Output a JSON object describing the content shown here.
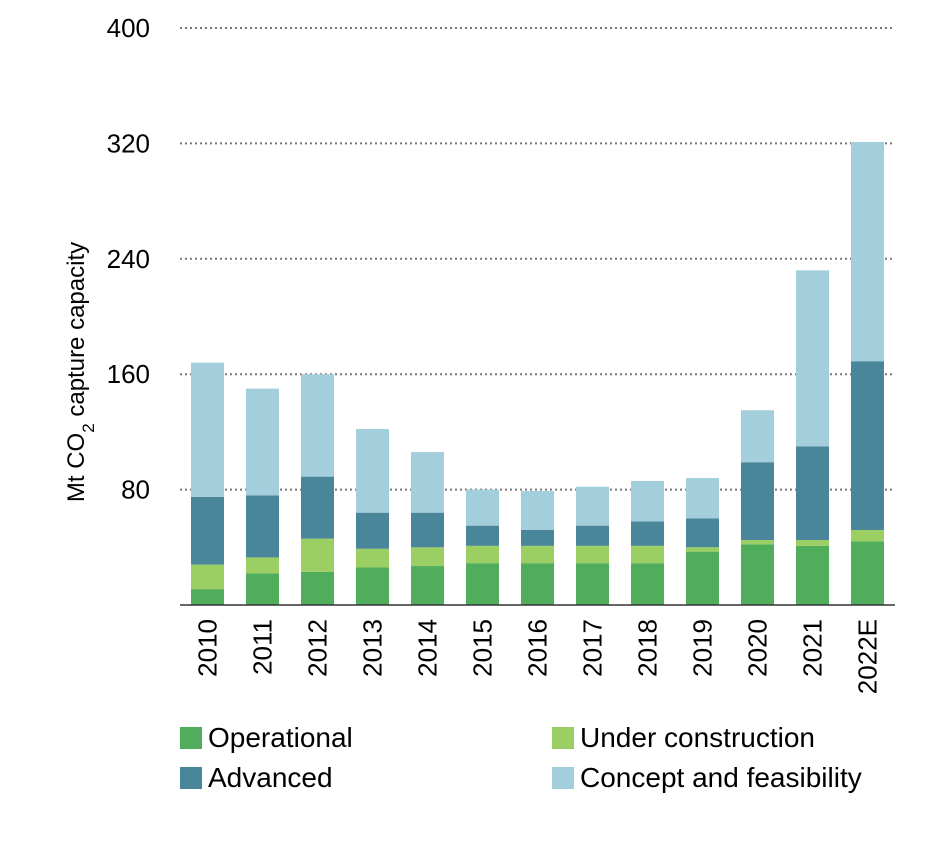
{
  "chart_data": {
    "type": "bar",
    "stacked": true,
    "ylabel_parts": [
      "Mt CO",
      "2",
      " capture capacity"
    ],
    "ylim": [
      0,
      400
    ],
    "yticks": [
      "80",
      "160",
      "240",
      "320",
      "400"
    ],
    "grid": "horizontal dotted",
    "legend_position": "bottom",
    "categories": [
      "2010",
      "2011",
      "2012",
      "2013",
      "2014",
      "2015",
      "2016",
      "2017",
      "2018",
      "2019",
      "2020",
      "2021",
      "2022E"
    ],
    "series": [
      {
        "name": "Operational",
        "color": "#4fad5b",
        "values": [
          11,
          22,
          23,
          26,
          27,
          29,
          29,
          29,
          29,
          37,
          42,
          41,
          44
        ]
      },
      {
        "name": "Under construction",
        "color": "#9ccf63",
        "values": [
          17,
          11,
          23,
          13,
          13,
          12,
          12,
          12,
          12,
          3,
          3,
          4,
          8
        ]
      },
      {
        "name": "Advanced",
        "color": "#4a8699",
        "values": [
          47,
          43,
          43,
          25,
          24,
          14,
          11,
          14,
          17,
          20,
          54,
          65,
          117
        ]
      },
      {
        "name": "Concept and feasibility",
        "color": "#a3cedb",
        "values": [
          93,
          74,
          71,
          58,
          42,
          25,
          27,
          27,
          28,
          28,
          36,
          122,
          152
        ]
      }
    ]
  }
}
